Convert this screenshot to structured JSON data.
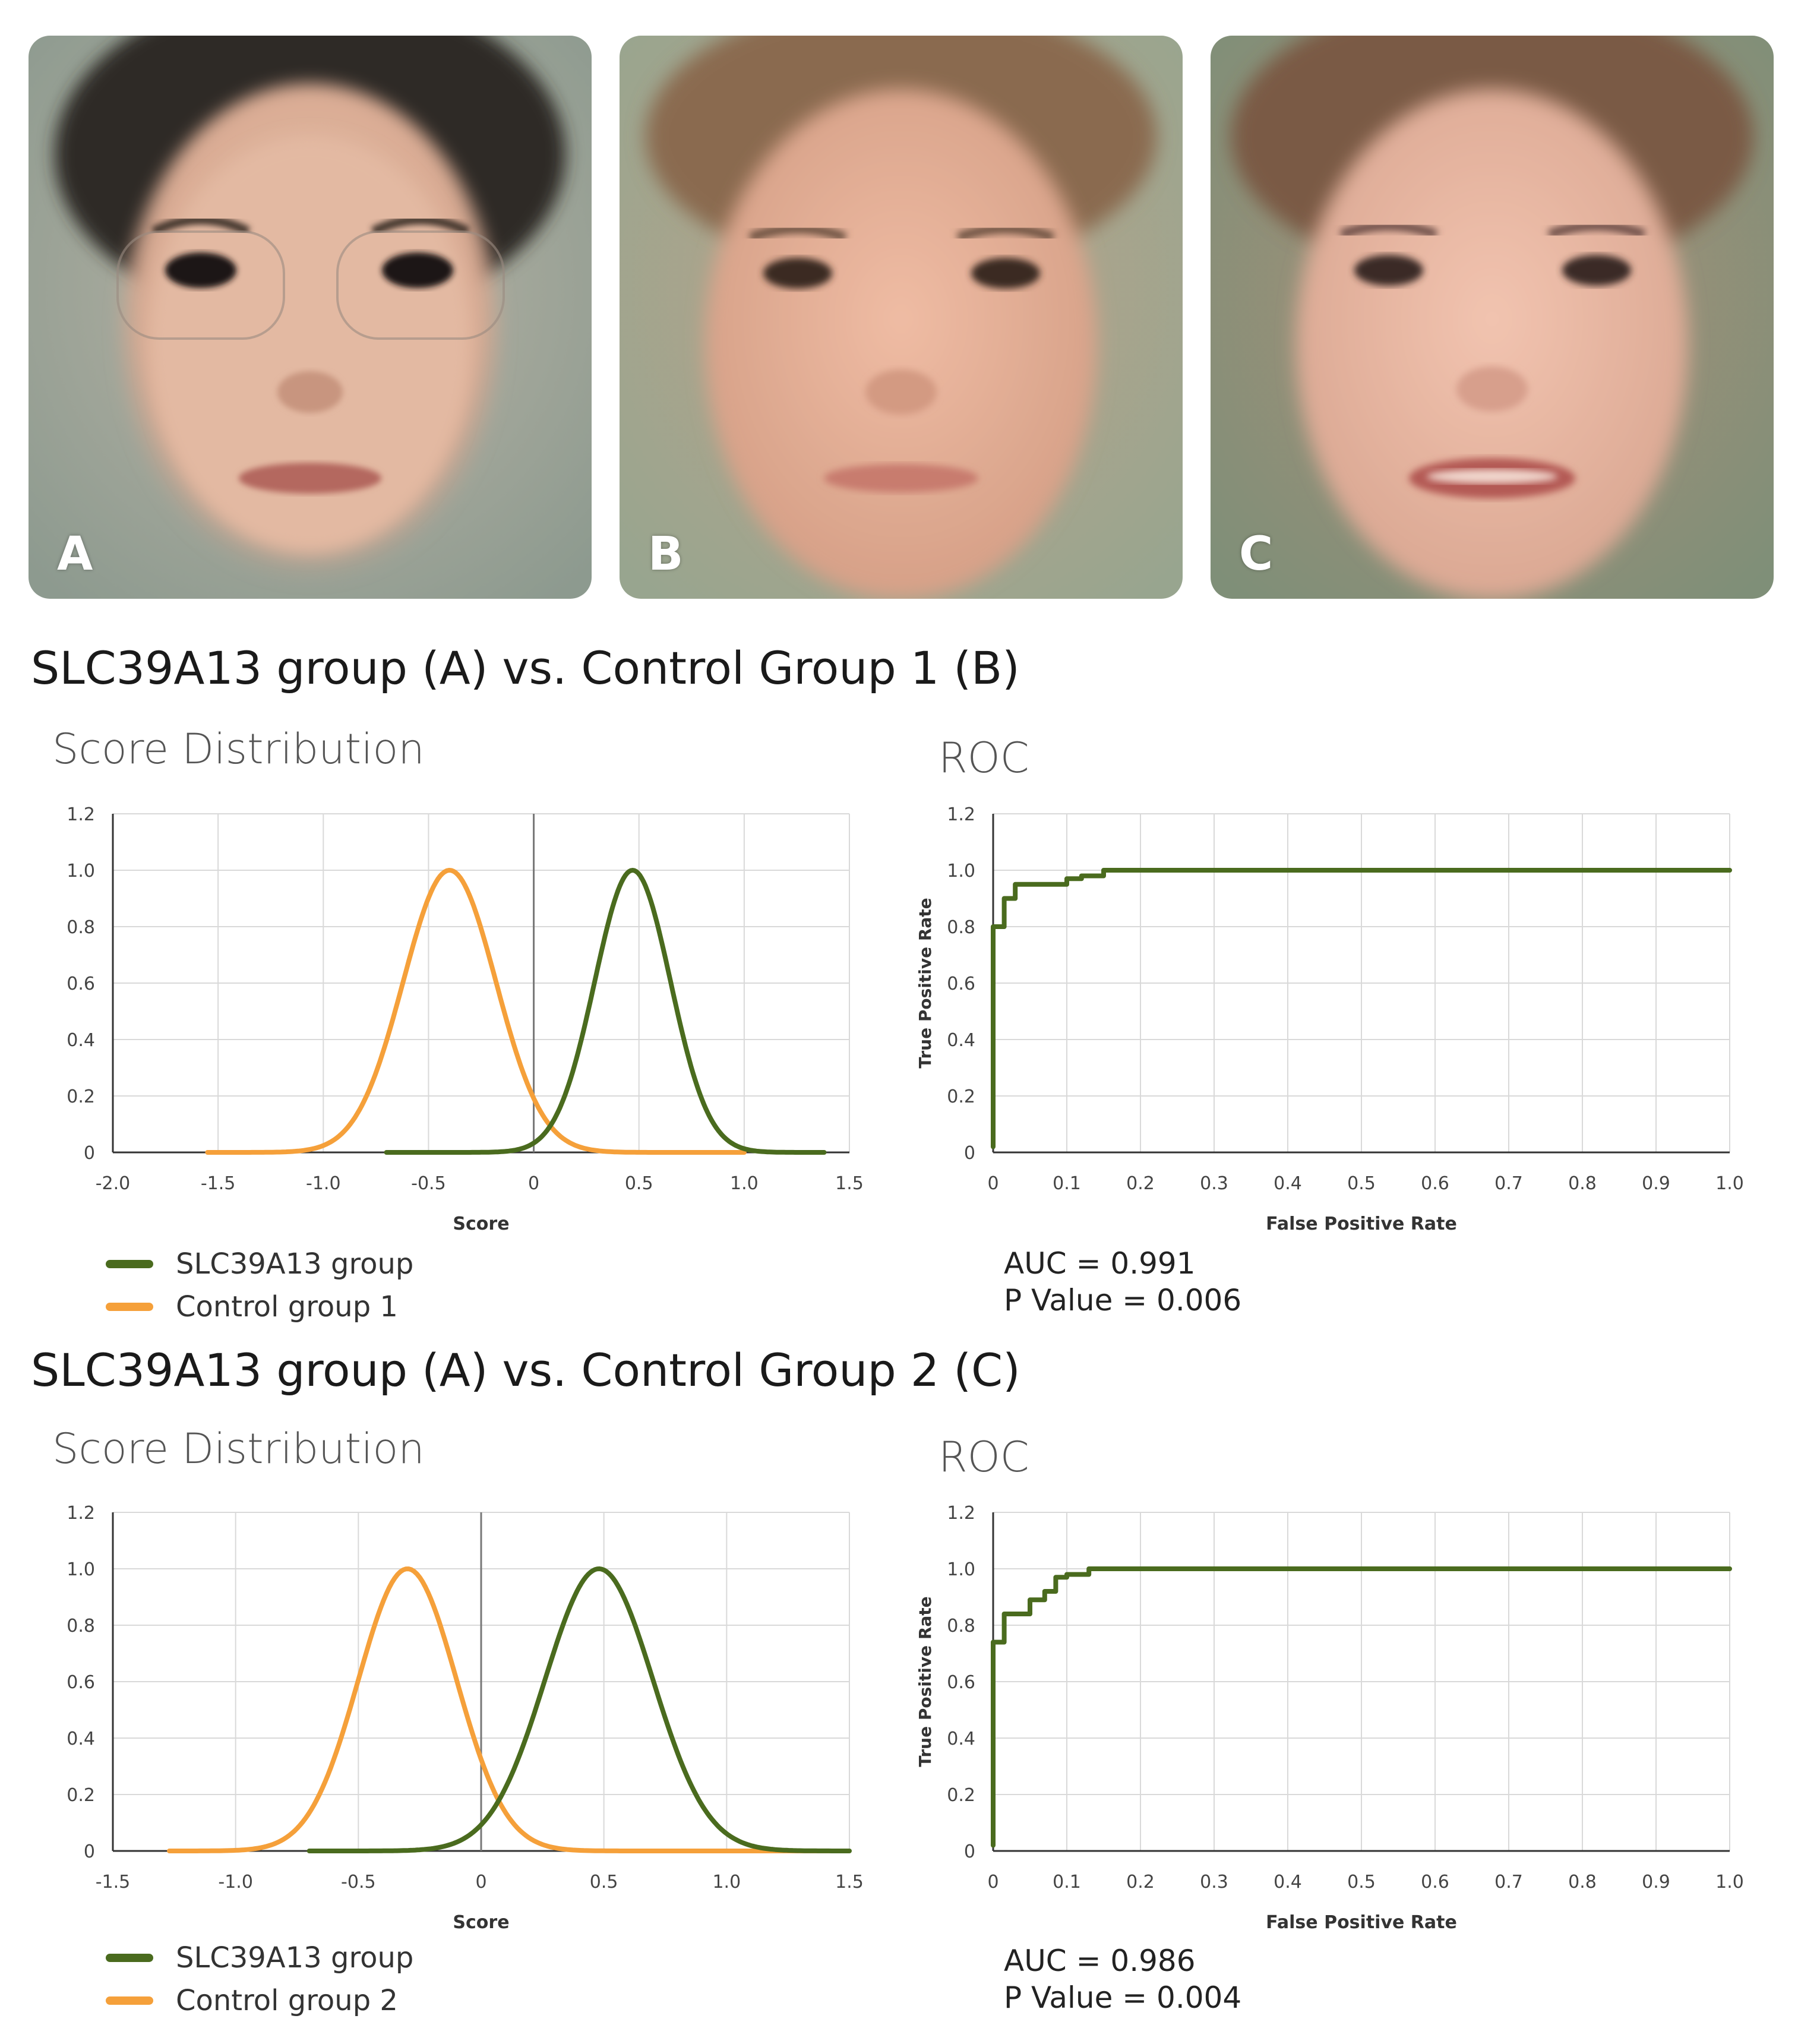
{
  "faces": [
    {
      "label": "A",
      "glasses": true
    },
    {
      "label": "B",
      "glasses": false
    },
    {
      "label": "C",
      "glasses": false
    }
  ],
  "colors": {
    "group": "#4a6b1e",
    "control": "#f5a03a",
    "grid": "#d9d9d9",
    "axis": "#333333"
  },
  "sections": [
    {
      "title": "SLC39A13 group (A)  vs. Control Group 1 (B)",
      "score_title": "Score Distribution",
      "roc_title": "ROC",
      "legend": [
        {
          "label": "SLC39A13 group",
          "color": "#4a6b1e"
        },
        {
          "label": "Control group 1",
          "color": "#f5a03a"
        }
      ],
      "auc": "AUC = 0.991",
      "pvalue": "P Value = 0.006"
    },
    {
      "title": "SLC39A13 group (A) vs. Control Group 2 (C)",
      "score_title": "Score Distribution",
      "roc_title": "ROC",
      "legend": [
        {
          "label": "SLC39A13 group",
          "color": "#4a6b1e"
        },
        {
          "label": "Control group 2",
          "color": "#f5a03a"
        }
      ],
      "auc": "AUC = 0.986",
      "pvalue": "P Value = 0.004"
    }
  ],
  "chart_data": [
    {
      "type": "line",
      "title": "Score Distribution",
      "xlabel": "Score",
      "ylabel": "",
      "xlim": [
        -2.0,
        1.5
      ],
      "ylim": [
        0,
        1.2
      ],
      "xticks": [
        "-2.0",
        "-1.5",
        "-1.0",
        "-0.5",
        "0",
        "0.5",
        "1.0",
        "1.5"
      ],
      "yticks": [
        "0",
        "0.2",
        "0.4",
        "0.6",
        "0.8",
        "1.0",
        "1.2"
      ],
      "xtick_values": [
        -2.0,
        -1.5,
        -1.0,
        -0.5,
        0,
        0.5,
        1.0,
        1.5
      ],
      "ytick_values": [
        0,
        0.2,
        0.4,
        0.6,
        0.8,
        1.0,
        1.2
      ],
      "vline": 0,
      "series": [
        {
          "name": "Control group 1",
          "color": "#f5a03a",
          "mean": -0.4,
          "sd": 0.22,
          "range": [
            -1.55,
            1.0
          ]
        },
        {
          "name": "SLC39A13 group",
          "color": "#4a6b1e",
          "mean": 0.47,
          "sd": 0.18,
          "range": [
            -0.7,
            1.38
          ]
        }
      ]
    },
    {
      "type": "line",
      "title": "ROC",
      "xlabel": "False Positive Rate",
      "ylabel": "True Positive Rate",
      "xlim": [
        0,
        1.0
      ],
      "ylim": [
        0,
        1.2
      ],
      "xticks": [
        "0",
        "0.1",
        "0.2",
        "0.3",
        "0.4",
        "0.5",
        "0.6",
        "0.7",
        "0.8",
        "0.9",
        "1.0"
      ],
      "yticks": [
        "0",
        "0.2",
        "0.4",
        "0.6",
        "0.8",
        "1.0",
        "1.2"
      ],
      "xtick_values": [
        0,
        0.1,
        0.2,
        0.3,
        0.4,
        0.5,
        0.6,
        0.7,
        0.8,
        0.9,
        1.0
      ],
      "ytick_values": [
        0,
        0.2,
        0.4,
        0.6,
        0.8,
        1.0,
        1.2
      ],
      "series": [
        {
          "name": "ROC",
          "color": "#4a6b1e",
          "x": [
            0,
            0,
            0.015,
            0.015,
            0.03,
            0.03,
            0.1,
            0.1,
            0.12,
            0.12,
            0.15,
            0.15,
            1.0
          ],
          "y": [
            0.02,
            0.8,
            0.8,
            0.9,
            0.9,
            0.95,
            0.95,
            0.97,
            0.97,
            0.98,
            0.98,
            1.0,
            1.0
          ]
        }
      ],
      "annotations": [
        "AUC = 0.991",
        "P Value = 0.006"
      ]
    },
    {
      "type": "line",
      "title": "Score Distribution",
      "xlabel": "Score",
      "ylabel": "",
      "xlim": [
        -1.5,
        1.5
      ],
      "ylim": [
        0,
        1.2
      ],
      "xticks": [
        "-1.5",
        "-1.0",
        "-0.5",
        "0",
        "0.5",
        "1.0",
        "1.5"
      ],
      "yticks": [
        "0",
        "0.2",
        "0.4",
        "0.6",
        "0.8",
        "1.0",
        "1.2"
      ],
      "xtick_values": [
        -1.5,
        -1.0,
        -0.5,
        0,
        0.5,
        1.0,
        1.5
      ],
      "ytick_values": [
        0,
        0.2,
        0.4,
        0.6,
        0.8,
        1.0,
        1.2
      ],
      "vline": 0,
      "series": [
        {
          "name": "Control group 2",
          "color": "#f5a03a",
          "mean": -0.3,
          "sd": 0.2,
          "range": [
            -1.27,
            1.45
          ]
        },
        {
          "name": "SLC39A13 group",
          "color": "#4a6b1e",
          "mean": 0.48,
          "sd": 0.22,
          "range": [
            -0.7,
            1.5
          ]
        }
      ]
    },
    {
      "type": "line",
      "title": "ROC",
      "xlabel": "False Positive Rate",
      "ylabel": "True Positive Rate",
      "xlim": [
        0,
        1.0
      ],
      "ylim": [
        0,
        1.2
      ],
      "xticks": [
        "0",
        "0.1",
        "0.2",
        "0.3",
        "0.4",
        "0.5",
        "0.6",
        "0.7",
        "0.8",
        "0.9",
        "1.0"
      ],
      "yticks": [
        "0",
        "0.2",
        "0.4",
        "0.6",
        "0.8",
        "1.0",
        "1.2"
      ],
      "xtick_values": [
        0,
        0.1,
        0.2,
        0.3,
        0.4,
        0.5,
        0.6,
        0.7,
        0.8,
        0.9,
        1.0
      ],
      "ytick_values": [
        0,
        0.2,
        0.4,
        0.6,
        0.8,
        1.0,
        1.2
      ],
      "series": [
        {
          "name": "ROC",
          "color": "#4a6b1e",
          "x": [
            0,
            0,
            0.015,
            0.015,
            0.05,
            0.05,
            0.07,
            0.07,
            0.085,
            0.085,
            0.1,
            0.1,
            0.13,
            0.13,
            1.0
          ],
          "y": [
            0.02,
            0.74,
            0.74,
            0.84,
            0.84,
            0.89,
            0.89,
            0.92,
            0.92,
            0.97,
            0.97,
            0.98,
            0.98,
            1.0,
            1.0
          ]
        }
      ],
      "annotations": [
        "AUC = 0.986",
        "P Value = 0.004"
      ]
    }
  ]
}
